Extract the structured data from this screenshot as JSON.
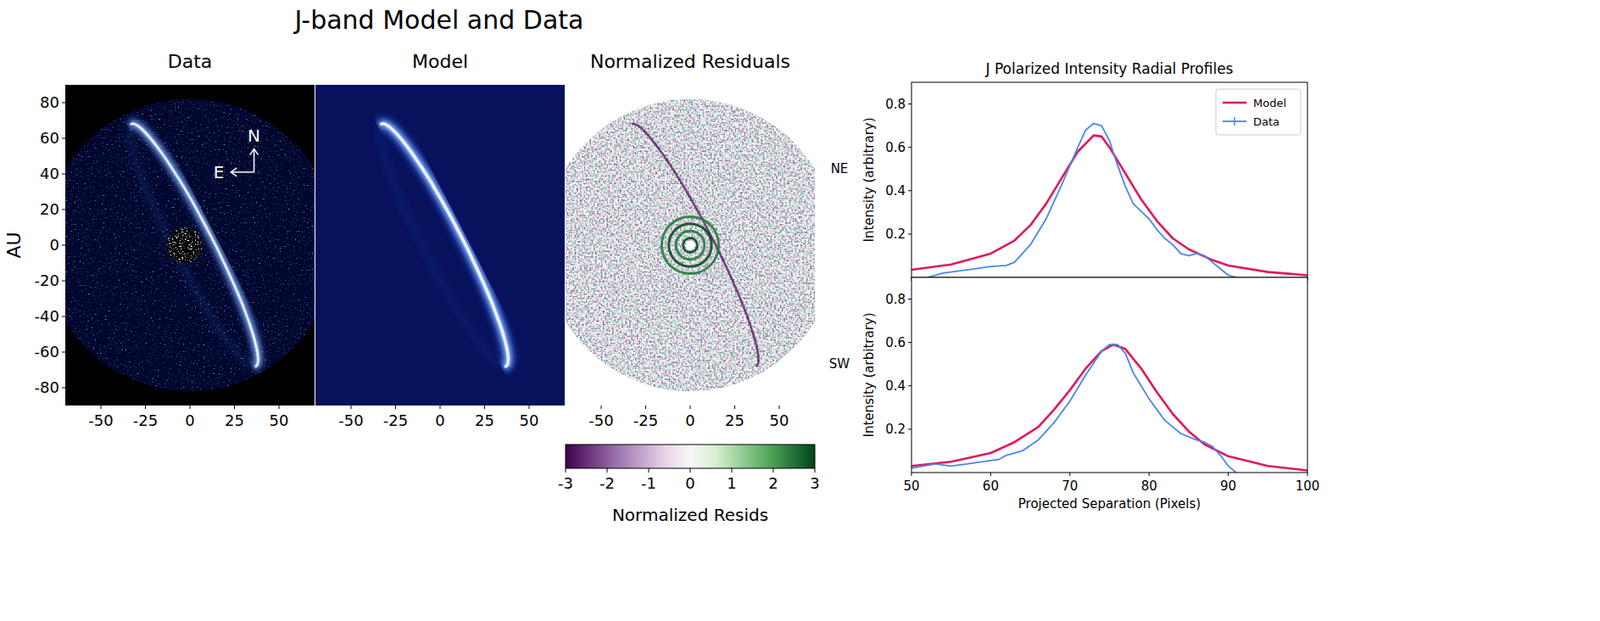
{
  "title": "J-band Model and Data",
  "chart_data": [
    {
      "type": "image",
      "title": "Data",
      "ylabel": "AU",
      "xlim": [
        -70,
        70
      ],
      "ylim": [
        -90,
        90
      ],
      "xticks": [
        -50,
        -25,
        0,
        25,
        50
      ],
      "yticks": [
        -80,
        -60,
        -40,
        -20,
        0,
        20,
        40,
        60,
        80
      ],
      "annotations": [
        "N",
        "E"
      ]
    },
    {
      "type": "image",
      "title": "Model",
      "xlim": [
        -70,
        70
      ],
      "ylim": [
        -90,
        90
      ],
      "xticks": [
        -50,
        -25,
        0,
        25,
        50
      ],
      "tick_labels": "x"
    },
    {
      "type": "image",
      "title": "Normalized Residuals",
      "xlim": [
        -70,
        70
      ],
      "ylim": [
        -90,
        90
      ],
      "xticks": [
        -50,
        -25,
        0,
        25,
        50
      ],
      "tick_labels": "x",
      "colorbar": {
        "label": "Normalized Resids",
        "range": [
          -3,
          3
        ],
        "ticks": [
          -3,
          -2,
          -1,
          0,
          1,
          2,
          3
        ]
      }
    },
    {
      "type": "line",
      "title": "J Polarized Intensity Radial Profiles",
      "annotation": "NE",
      "ylabel": "Intensity (arbitrary)",
      "xlim": [
        50,
        100
      ],
      "ylim": [
        0,
        0.9
      ],
      "xticks": [
        50,
        60,
        70,
        80,
        90,
        100
      ],
      "yticks": [
        0.2,
        0.4,
        0.6,
        0.8
      ],
      "tick_labels": "y",
      "legend": "upper right",
      "series": [
        {
          "name": "Model",
          "color": "#e0195a",
          "x": [
            50,
            55,
            60,
            63,
            65,
            67,
            69,
            71,
            73,
            74,
            75,
            77,
            79,
            81,
            83,
            85,
            88,
            90,
            95,
            100
          ],
          "values": [
            0.035,
            0.06,
            0.11,
            0.17,
            0.24,
            0.34,
            0.46,
            0.58,
            0.655,
            0.65,
            0.6,
            0.48,
            0.36,
            0.26,
            0.18,
            0.13,
            0.08,
            0.055,
            0.025,
            0.01
          ]
        },
        {
          "name": "Data",
          "color": "#4a86e8",
          "x": [
            52,
            54,
            56,
            58,
            60,
            62,
            63,
            65,
            67,
            69,
            71,
            72,
            73,
            74,
            75,
            76,
            77,
            78,
            80,
            81,
            82,
            83,
            84,
            85,
            86,
            87,
            88,
            89,
            90,
            91
          ],
          "values": [
            0.0,
            0.02,
            0.03,
            0.04,
            0.05,
            0.055,
            0.07,
            0.15,
            0.27,
            0.43,
            0.6,
            0.68,
            0.71,
            0.7,
            0.63,
            0.52,
            0.42,
            0.34,
            0.27,
            0.22,
            0.18,
            0.15,
            0.11,
            0.1,
            0.11,
            0.1,
            0.07,
            0.04,
            0.01,
            0.0
          ]
        }
      ]
    },
    {
      "type": "line",
      "annotation": "SW",
      "ylabel": "Intensity (arbitrary)",
      "xlabel": "Projected Separation (Pixels)",
      "xlim": [
        50,
        100
      ],
      "ylim": [
        0,
        0.9
      ],
      "xticks": [
        50,
        60,
        70,
        80,
        90,
        100
      ],
      "yticks": [
        0.2,
        0.4,
        0.6,
        0.8
      ],
      "series": [
        {
          "color": "#e0195a",
          "x": [
            50,
            55,
            60,
            63,
            66,
            68,
            70,
            72,
            74,
            75.5,
            77,
            79,
            81,
            83,
            85,
            87,
            90,
            95,
            100
          ],
          "values": [
            0.03,
            0.05,
            0.09,
            0.14,
            0.21,
            0.29,
            0.38,
            0.48,
            0.56,
            0.59,
            0.57,
            0.48,
            0.37,
            0.27,
            0.19,
            0.13,
            0.075,
            0.03,
            0.01
          ]
        },
        {
          "color": "#4a86e8",
          "x": [
            50,
            53,
            55,
            57,
            59,
            61,
            62,
            64,
            66,
            68,
            70,
            72,
            74,
            75,
            76,
            77,
            78,
            80,
            82,
            84,
            86,
            87,
            88,
            89,
            90,
            91
          ],
          "values": [
            0.02,
            0.04,
            0.03,
            0.04,
            0.05,
            0.06,
            0.08,
            0.1,
            0.15,
            0.23,
            0.33,
            0.45,
            0.56,
            0.59,
            0.59,
            0.55,
            0.46,
            0.34,
            0.24,
            0.18,
            0.15,
            0.14,
            0.12,
            0.08,
            0.03,
            0.0
          ]
        }
      ]
    }
  ]
}
